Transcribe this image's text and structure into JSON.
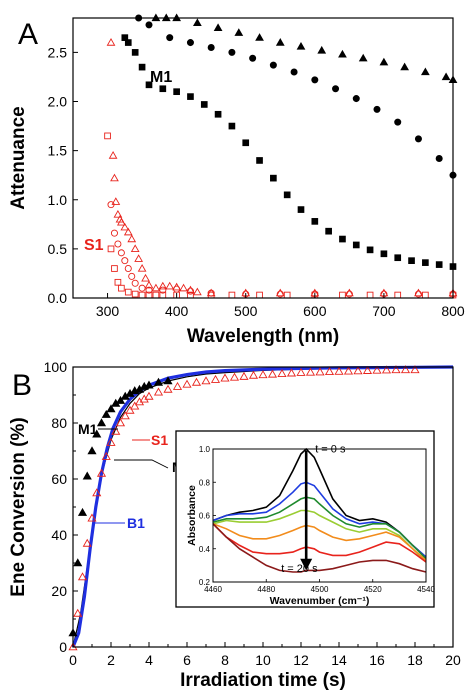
{
  "chart_data": [
    {
      "panel": "A",
      "type": "scatter",
      "xlabel": "Wavelength (nm)",
      "ylabel": "Attenuance",
      "xlim": [
        250,
        800
      ],
      "ylim": [
        0,
        2.85
      ],
      "xticks": [
        300,
        400,
        500,
        600,
        700,
        800
      ],
      "yticks": [
        0.0,
        0.5,
        1.0,
        1.5,
        2.0,
        2.5
      ],
      "xtick_labels": [
        "300",
        "400",
        "500",
        "600",
        "700",
        "800"
      ],
      "ytick_labels": [
        "0.0",
        "0.5",
        "1.0",
        "1.5",
        "2.0",
        "2.5"
      ],
      "annotations": [
        {
          "text": "M1",
          "color": "#000000"
        },
        {
          "text": "S1",
          "color": "#e8231c"
        }
      ],
      "series": [
        {
          "group": "M1",
          "marker": "triangle",
          "color": "#000000",
          "x": [
            370,
            385,
            400,
            430,
            460,
            490,
            520,
            550,
            580,
            610,
            640,
            670,
            700,
            730,
            760,
            790,
            800
          ],
          "y": [
            2.85,
            2.85,
            2.85,
            2.8,
            2.75,
            2.7,
            2.65,
            2.6,
            2.56,
            2.52,
            2.48,
            2.44,
            2.4,
            2.35,
            2.3,
            2.25,
            2.22
          ]
        },
        {
          "group": "M1",
          "marker": "circle",
          "color": "#000000",
          "x": [
            345,
            360,
            390,
            420,
            450,
            480,
            510,
            540,
            570,
            600,
            630,
            660,
            690,
            720,
            750,
            780,
            800
          ],
          "y": [
            2.85,
            2.78,
            2.65,
            2.6,
            2.55,
            2.5,
            2.44,
            2.37,
            2.3,
            2.22,
            2.13,
            2.03,
            1.92,
            1.79,
            1.62,
            1.42,
            1.25
          ]
        },
        {
          "group": "M1",
          "marker": "square",
          "color": "#000000",
          "x": [
            325,
            330,
            340,
            350,
            360,
            380,
            400,
            420,
            440,
            460,
            480,
            500,
            520,
            540,
            560,
            580,
            600,
            620,
            640,
            660,
            680,
            700,
            720,
            740,
            760,
            780,
            800
          ],
          "y": [
            2.65,
            2.6,
            2.5,
            2.35,
            2.17,
            2.13,
            2.1,
            2.05,
            1.97,
            1.87,
            1.75,
            1.58,
            1.4,
            1.22,
            1.05,
            0.9,
            0.78,
            0.68,
            0.6,
            0.54,
            0.49,
            0.45,
            0.41,
            0.38,
            0.36,
            0.34,
            0.32
          ]
        },
        {
          "group": "S1",
          "marker": "triangle-open",
          "color": "#e8231c",
          "x": [
            305,
            308,
            310,
            312,
            315,
            318,
            320,
            325,
            330,
            335,
            340,
            345,
            350,
            355,
            360,
            370,
            380,
            390,
            400,
            410,
            420,
            430,
            450,
            500,
            550,
            600,
            650,
            700,
            750,
            800
          ],
          "y": [
            2.6,
            1.45,
            1.22,
            0.98,
            0.85,
            0.8,
            0.77,
            0.72,
            0.67,
            0.6,
            0.5,
            0.4,
            0.3,
            0.2,
            0.13,
            0.1,
            0.12,
            0.12,
            0.11,
            0.1,
            0.08,
            0.06,
            0.05,
            0.05,
            0.05,
            0.05,
            0.05,
            0.05,
            0.05,
            0.05
          ]
        },
        {
          "group": "S1",
          "marker": "circle-open",
          "color": "#e8231c",
          "x": [
            305,
            310,
            315,
            320,
            325,
            330,
            335,
            340,
            350,
            360,
            380,
            400,
            420,
            450,
            500,
            550,
            600,
            650,
            700,
            750,
            800
          ],
          "y": [
            0.95,
            0.66,
            0.55,
            0.46,
            0.38,
            0.3,
            0.22,
            0.15,
            0.1,
            0.08,
            0.08,
            0.09,
            0.07,
            0.05,
            0.04,
            0.04,
            0.04,
            0.04,
            0.04,
            0.04,
            0.04
          ]
        },
        {
          "group": "S1",
          "marker": "square-open",
          "color": "#e8231c",
          "x": [
            300,
            305,
            310,
            315,
            320,
            330,
            340,
            350,
            360,
            370,
            380,
            400,
            420,
            450,
            480,
            520,
            560,
            600,
            640,
            680,
            720,
            760,
            800
          ],
          "y": [
            1.65,
            0.5,
            0.3,
            0.16,
            0.1,
            0.06,
            0.04,
            0.03,
            0.03,
            0.03,
            0.03,
            0.03,
            0.03,
            0.03,
            0.03,
            0.03,
            0.03,
            0.03,
            0.03,
            0.03,
            0.03,
            0.03,
            0.03
          ]
        }
      ]
    },
    {
      "panel": "B",
      "type": "scatter",
      "xlabel": "Irradiation time (s)",
      "ylabel": "Ene Conversion (%)",
      "xlim": [
        0,
        20
      ],
      "ylim": [
        0,
        100
      ],
      "xticks": [
        0,
        2,
        4,
        6,
        8,
        10,
        12,
        14,
        16,
        18,
        20
      ],
      "yticks": [
        0,
        20,
        40,
        60,
        80,
        100
      ],
      "xtick_labels": [
        "0",
        "2",
        "4",
        "6",
        "8",
        "10",
        "12",
        "14",
        "16",
        "18",
        "20"
      ],
      "ytick_labels": [
        "0",
        "20",
        "40",
        "60",
        "80",
        "100"
      ],
      "annotations": [
        {
          "text": "M1",
          "color": "#000000"
        },
        {
          "text": "S1",
          "color": "#e8231c"
        },
        {
          "text": "M1",
          "color": "#000000"
        },
        {
          "text": "B1",
          "color": "#1f2fe0"
        }
      ],
      "series": [
        {
          "group": "M1",
          "marker": "triangle",
          "color": "#000000",
          "x": [
            0.0,
            0.25,
            0.5,
            0.75,
            1.0,
            1.25,
            1.5,
            1.75,
            2.0,
            2.25,
            2.5,
            2.75,
            3.0,
            3.25,
            3.5,
            3.75,
            4.0,
            4.5,
            5.0
          ],
          "y": [
            5,
            30,
            48,
            61,
            70,
            76,
            80,
            83,
            85,
            87,
            88,
            89.5,
            90.5,
            91.5,
            92,
            93,
            93.5,
            94.5,
            95
          ]
        },
        {
          "group": "S1",
          "marker": "triangle-open",
          "color": "#e8231c",
          "x": [
            0.0,
            0.25,
            0.5,
            0.75,
            1.0,
            1.25,
            1.5,
            1.75,
            2.0,
            2.25,
            2.5,
            2.75,
            3.0,
            3.25,
            3.5,
            3.75,
            4.0,
            4.5,
            5.0,
            5.5,
            6.0,
            6.5,
            7.0,
            7.5,
            8.0,
            8.5,
            9.0,
            9.5,
            10.0,
            10.5,
            11.0,
            11.5,
            12.0,
            12.5,
            13.0,
            13.5,
            14.0,
            14.5,
            15.0,
            15.5,
            16.0,
            16.5,
            17.0,
            17.5,
            18.0
          ],
          "y": [
            0,
            12,
            25,
            37,
            46,
            55,
            62,
            68,
            73,
            77,
            80,
            82.5,
            84.5,
            86,
            87.5,
            88.5,
            89.5,
            91,
            92,
            93,
            93.8,
            94.5,
            95,
            95.5,
            96,
            96.3,
            96.6,
            97,
            97.2,
            97.4,
            97.6,
            97.8,
            98,
            98.1,
            98.2,
            98.3,
            98.4,
            98.5,
            98.6,
            98.7,
            98.8,
            98.9,
            99,
            99,
            99
          ]
        },
        {
          "group": "M1",
          "marker": "line",
          "color": "#000000",
          "x": [
            0,
            0.4,
            0.8,
            1.2,
            1.6,
            2.0,
            2.5,
            3.0,
            3.5,
            4.0,
            5.0,
            6.0,
            7.0,
            8.0,
            10.0,
            12.0,
            14.0,
            16.0,
            18.0,
            20.0
          ],
          "y": [
            0,
            12,
            31,
            50,
            64,
            74,
            82,
            87,
            90.5,
            92.5,
            95,
            96.5,
            97.5,
            98,
            98.8,
            99.2,
            99.4,
            99.6,
            99.7,
            99.8
          ]
        },
        {
          "group": "B1",
          "marker": "line-thick",
          "color": "#1f2fe0",
          "x": [
            0,
            0.3,
            0.6,
            0.9,
            1.2,
            1.5,
            1.8,
            2.1,
            2.5,
            3.0,
            3.5,
            4.0,
            5.0,
            6.0,
            7.0,
            8.0,
            10.0,
            12.0,
            14.0,
            16.0,
            18.0,
            20.0
          ],
          "y": [
            0,
            5,
            18,
            35,
            50,
            62,
            71,
            78,
            84,
            88.5,
            91.5,
            93.5,
            96,
            97.3,
            98.2,
            98.7,
            99.2,
            99.5,
            99.7,
            99.8,
            99.9,
            100
          ]
        }
      ],
      "inset": {
        "type": "line",
        "xlabel": "Wavenumber (cm⁻¹)",
        "ylabel": "Absorbance",
        "xlim": [
          4460,
          4540
        ],
        "ylim": [
          0.2,
          1.0
        ],
        "xticks": [
          4460,
          4480,
          4500,
          4520,
          4540
        ],
        "yticks": [
          0.2,
          0.4,
          0.6,
          0.8,
          1.0
        ],
        "xtick_labels": [
          "4460",
          "4480",
          "4500",
          "4520",
          "4540"
        ],
        "ytick_labels": [
          "0.2",
          "0.4",
          "0.6",
          "0.8",
          "1.0"
        ],
        "annotations": [
          {
            "text": "t = 0 s"
          },
          {
            "text": "t = 20 s"
          }
        ],
        "series": [
          {
            "color": "#000000",
            "x": [
              4460,
              4465,
              4470,
              4475,
              4480,
              4485,
              4490,
              4493,
              4495,
              4498,
              4500,
              4505,
              4510,
              4515,
              4520,
              4525,
              4530,
              4535,
              4540
            ],
            "y": [
              0.57,
              0.6,
              0.62,
              0.63,
              0.65,
              0.72,
              0.87,
              0.97,
              1.0,
              0.95,
              0.88,
              0.7,
              0.6,
              0.57,
              0.58,
              0.56,
              0.5,
              0.42,
              0.35
            ]
          },
          {
            "color": "#1f3de0",
            "x": [
              4460,
              4465,
              4470,
              4475,
              4480,
              4485,
              4490,
              4493,
              4495,
              4498,
              4500,
              4505,
              4510,
              4515,
              4520,
              4525,
              4530,
              4535,
              4540
            ],
            "y": [
              0.57,
              0.6,
              0.61,
              0.61,
              0.62,
              0.67,
              0.74,
              0.79,
              0.8,
              0.78,
              0.74,
              0.64,
              0.58,
              0.55,
              0.56,
              0.55,
              0.5,
              0.42,
              0.35
            ]
          },
          {
            "color": "#1f8a2e",
            "x": [
              4460,
              4465,
              4470,
              4475,
              4480,
              4485,
              4490,
              4493,
              4495,
              4498,
              4500,
              4505,
              4510,
              4515,
              4520,
              4525,
              4530,
              4535,
              4540
            ],
            "y": [
              0.56,
              0.58,
              0.58,
              0.58,
              0.59,
              0.62,
              0.67,
              0.7,
              0.71,
              0.7,
              0.67,
              0.6,
              0.55,
              0.53,
              0.55,
              0.55,
              0.5,
              0.42,
              0.34
            ]
          },
          {
            "color": "#9acd32",
            "x": [
              4460,
              4465,
              4470,
              4475,
              4480,
              4485,
              4490,
              4493,
              4495,
              4498,
              4500,
              4505,
              4510,
              4515,
              4520,
              4525,
              4530,
              4535,
              4540
            ],
            "y": [
              0.55,
              0.57,
              0.56,
              0.56,
              0.56,
              0.58,
              0.61,
              0.63,
              0.63,
              0.62,
              0.6,
              0.56,
              0.52,
              0.5,
              0.52,
              0.52,
              0.48,
              0.4,
              0.32
            ]
          },
          {
            "color": "#f28c1c",
            "x": [
              4460,
              4465,
              4470,
              4475,
              4480,
              4485,
              4490,
              4493,
              4495,
              4498,
              4500,
              4505,
              4510,
              4515,
              4520,
              4525,
              4530,
              4535,
              4540
            ],
            "y": [
              0.55,
              0.52,
              0.48,
              0.46,
              0.46,
              0.48,
              0.51,
              0.53,
              0.54,
              0.53,
              0.51,
              0.47,
              0.45,
              0.46,
              0.48,
              0.5,
              0.47,
              0.4,
              0.33
            ]
          },
          {
            "color": "#e8231c",
            "x": [
              4460,
              4465,
              4470,
              4475,
              4480,
              4485,
              4490,
              4493,
              4495,
              4498,
              4500,
              4505,
              4510,
              4515,
              4520,
              4525,
              4530,
              4535,
              4540
            ],
            "y": [
              0.55,
              0.47,
              0.42,
              0.38,
              0.37,
              0.37,
              0.38,
              0.4,
              0.41,
              0.4,
              0.38,
              0.36,
              0.36,
              0.38,
              0.41,
              0.44,
              0.43,
              0.38,
              0.32
            ]
          },
          {
            "color": "#8b1a1a",
            "x": [
              4460,
              4465,
              4470,
              4475,
              4480,
              4485,
              4490,
              4493,
              4495,
              4498,
              4500,
              4505,
              4510,
              4515,
              4520,
              4525,
              4530,
              4535,
              4540
            ],
            "y": [
              0.55,
              0.47,
              0.4,
              0.35,
              0.3,
              0.27,
              0.26,
              0.26,
              0.27,
              0.27,
              0.27,
              0.28,
              0.3,
              0.32,
              0.33,
              0.33,
              0.31,
              0.28,
              0.26
            ]
          }
        ]
      }
    }
  ]
}
